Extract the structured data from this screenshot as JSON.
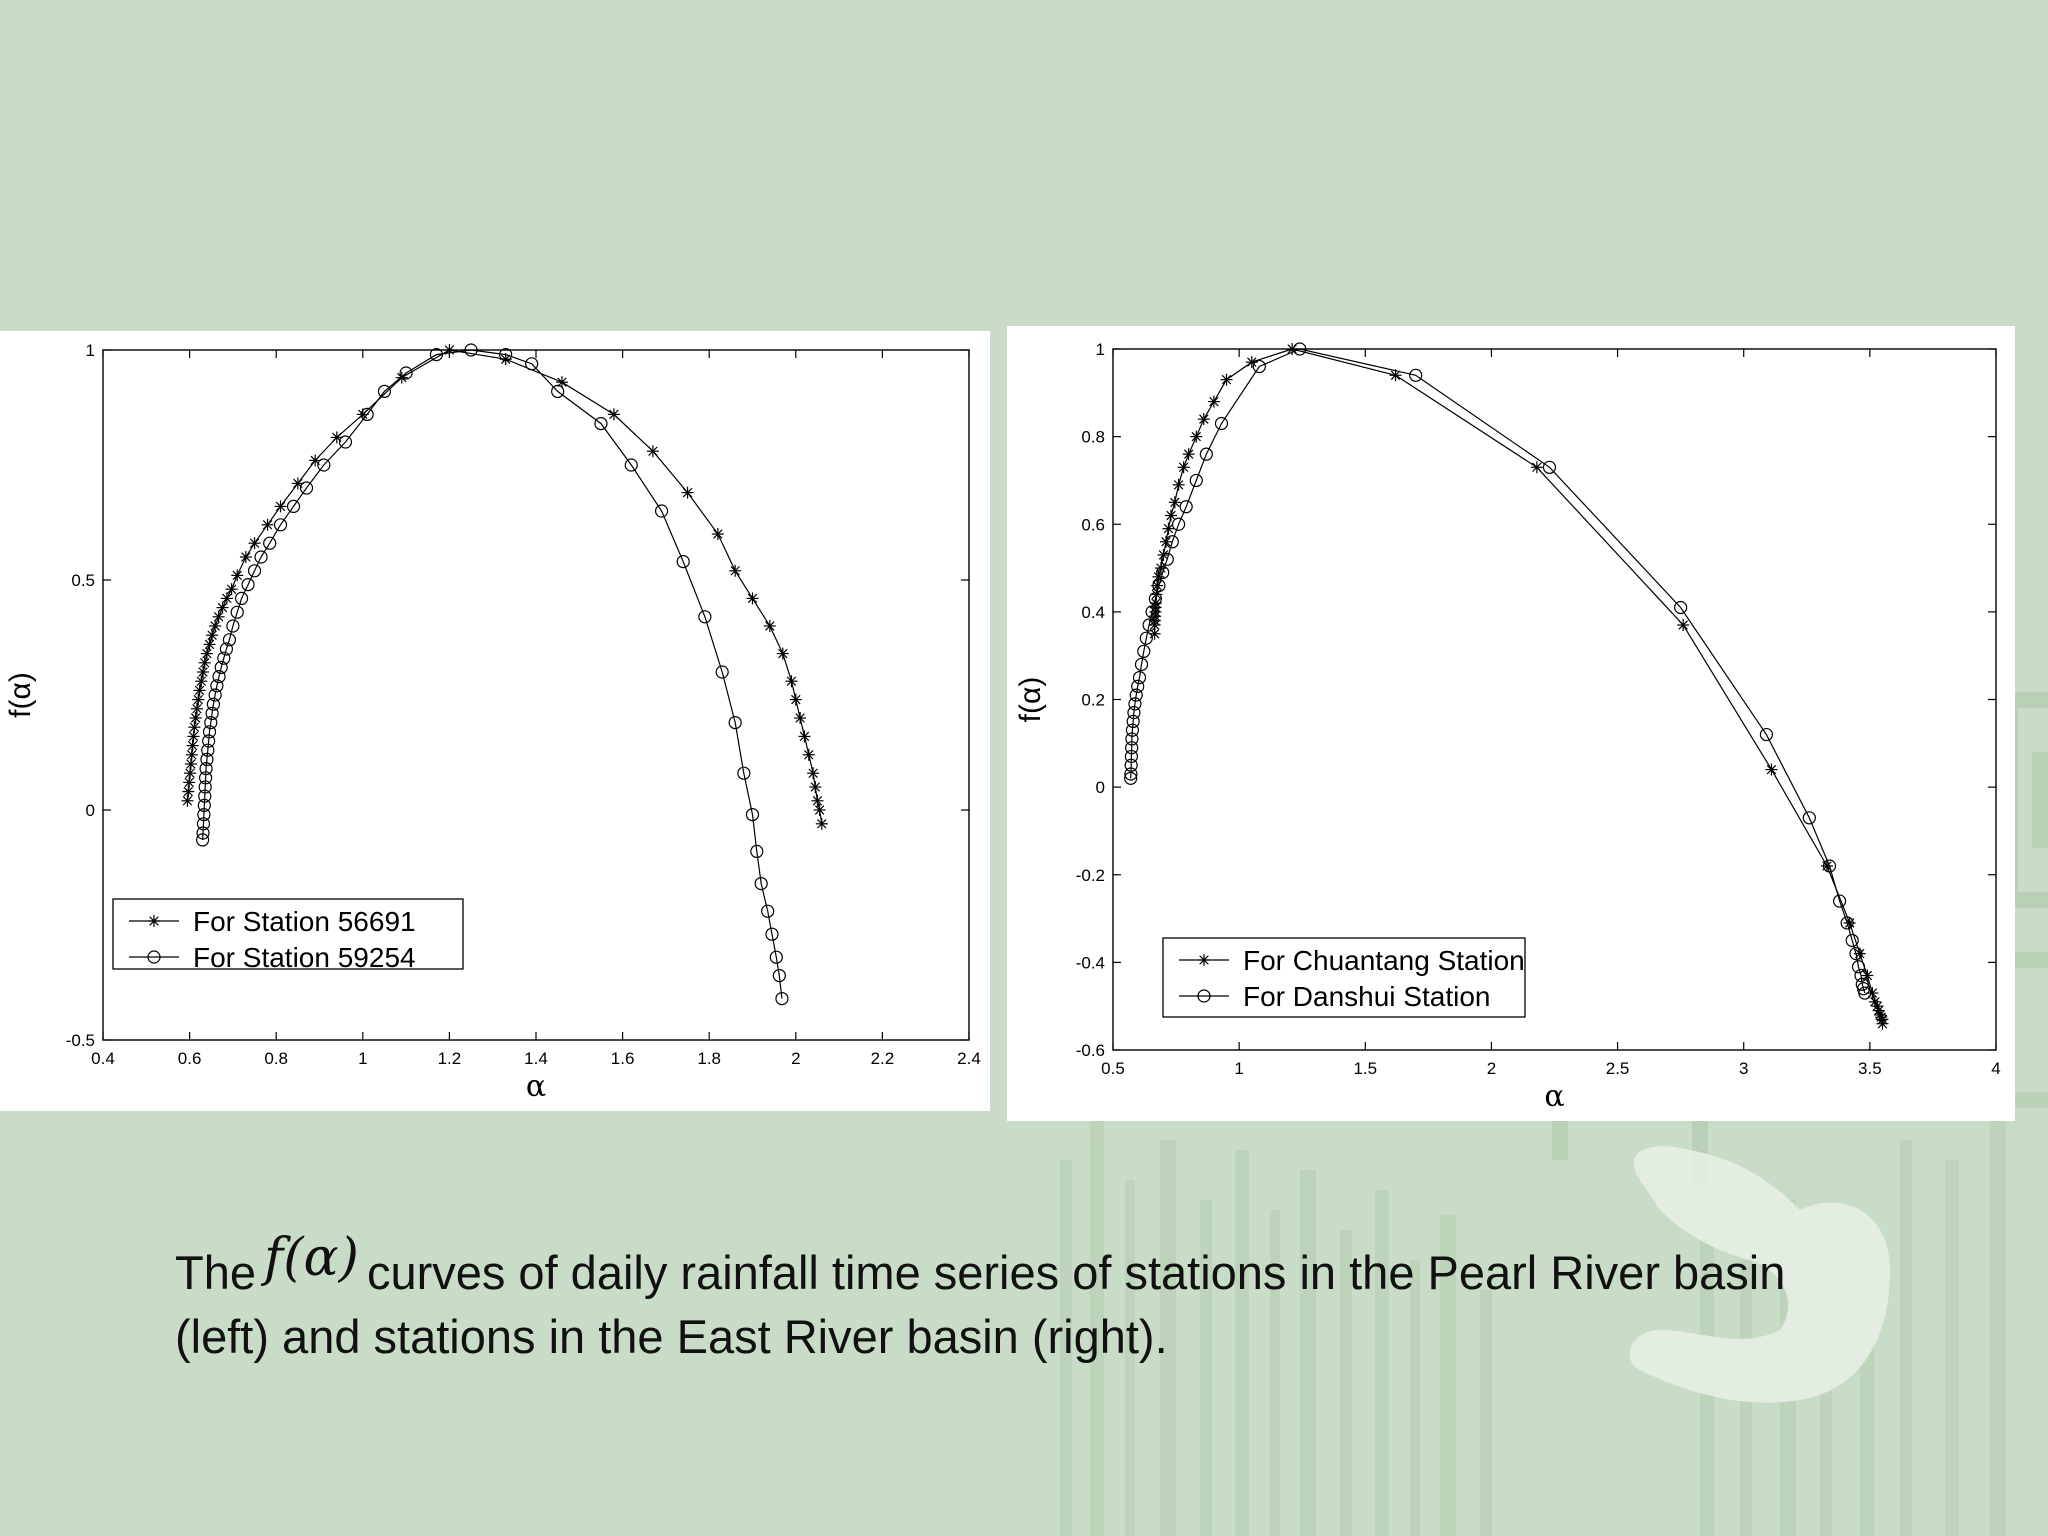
{
  "caption": {
    "prefix": "The",
    "math": "f(α)",
    "text": "curves of daily rainfall time series of stations in the Pearl River basin (left) and stations in the East River basin (right)."
  },
  "colors": {
    "background": "#c9dcc7",
    "panel": "#ffffff",
    "ink": "#000000"
  },
  "chart_data": [
    {
      "type": "line",
      "xlabel": "α",
      "ylabel": "f(α)",
      "xlim": [
        0.4,
        2.4
      ],
      "ylim": [
        -0.5,
        1
      ],
      "xticks": [
        "0.4",
        "0.6",
        "0.8",
        "1",
        "1.2",
        "1.4",
        "1.6",
        "1.8",
        "2",
        "2.2",
        "2.4"
      ],
      "yticks": [
        "-0.5",
        "0",
        "0.5",
        "1"
      ],
      "legend_position": "bottom-left",
      "series": [
        {
          "name": "For Station 56691",
          "marker": "asterisk",
          "x": [
            0.595,
            0.597,
            0.599,
            0.601,
            0.603,
            0.605,
            0.607,
            0.609,
            0.611,
            0.614,
            0.617,
            0.62,
            0.623,
            0.627,
            0.631,
            0.635,
            0.64,
            0.646,
            0.652,
            0.659,
            0.667,
            0.676,
            0.686,
            0.697,
            0.71,
            0.73,
            0.75,
            0.78,
            0.81,
            0.85,
            0.89,
            0.94,
            1.0,
            1.09,
            1.2,
            1.33,
            1.46,
            1.58,
            1.67,
            1.75,
            1.82,
            1.86,
            1.9,
            1.94,
            1.97,
            1.99,
            2.0,
            2.01,
            2.02,
            2.03,
            2.04,
            2.045,
            2.05,
            2.055,
            2.06
          ],
          "y": [
            0.02,
            0.04,
            0.06,
            0.08,
            0.1,
            0.12,
            0.14,
            0.16,
            0.18,
            0.2,
            0.22,
            0.24,
            0.26,
            0.28,
            0.3,
            0.32,
            0.34,
            0.36,
            0.38,
            0.4,
            0.42,
            0.44,
            0.46,
            0.48,
            0.51,
            0.55,
            0.58,
            0.62,
            0.66,
            0.71,
            0.76,
            0.81,
            0.86,
            0.94,
            1.0,
            0.98,
            0.93,
            0.86,
            0.78,
            0.69,
            0.6,
            0.52,
            0.46,
            0.4,
            0.34,
            0.28,
            0.24,
            0.2,
            0.16,
            0.12,
            0.08,
            0.05,
            0.02,
            0.0,
            -0.03
          ]
        },
        {
          "name": "For Station 59254",
          "marker": "circle",
          "x": [
            0.63,
            0.631,
            0.632,
            0.633,
            0.634,
            0.635,
            0.636,
            0.637,
            0.638,
            0.64,
            0.642,
            0.644,
            0.646,
            0.649,
            0.652,
            0.655,
            0.659,
            0.663,
            0.668,
            0.673,
            0.679,
            0.685,
            0.692,
            0.7,
            0.71,
            0.72,
            0.735,
            0.75,
            0.765,
            0.785,
            0.81,
            0.84,
            0.87,
            0.91,
            0.96,
            1.01,
            1.05,
            1.1,
            1.17,
            1.25,
            1.33,
            1.39,
            1.45,
            1.55,
            1.62,
            1.69,
            1.74,
            1.79,
            1.83,
            1.86,
            1.88,
            1.9,
            1.91,
            1.92,
            1.935,
            1.945,
            1.955,
            1.962,
            1.968
          ],
          "y": [
            -0.065,
            -0.05,
            -0.03,
            -0.01,
            0.01,
            0.03,
            0.05,
            0.07,
            0.09,
            0.11,
            0.13,
            0.15,
            0.17,
            0.19,
            0.21,
            0.23,
            0.25,
            0.27,
            0.29,
            0.31,
            0.33,
            0.35,
            0.37,
            0.4,
            0.43,
            0.46,
            0.49,
            0.52,
            0.55,
            0.58,
            0.62,
            0.66,
            0.7,
            0.75,
            0.8,
            0.86,
            0.91,
            0.95,
            0.99,
            1.0,
            0.99,
            0.97,
            0.91,
            0.84,
            0.75,
            0.65,
            0.54,
            0.42,
            0.3,
            0.19,
            0.08,
            -0.01,
            -0.09,
            -0.16,
            -0.22,
            -0.27,
            -0.32,
            -0.36,
            -0.41
          ]
        }
      ]
    },
    {
      "type": "line",
      "xlabel": "α",
      "ylabel": "f(α)",
      "xlim": [
        0.5,
        4
      ],
      "ylim": [
        -0.6,
        1
      ],
      "xticks": [
        "0.5",
        "1",
        "1.5",
        "2",
        "2.5",
        "3",
        "3.5",
        "4"
      ],
      "yticks": [
        "-0.6",
        "-0.4",
        "-0.2",
        "0",
        "0.2",
        "0.4",
        "0.6",
        "0.8",
        "1"
      ],
      "legend_position": "bottom-left",
      "series": [
        {
          "name": "For Chuantang Station",
          "marker": "asterisk",
          "x": [
            0.665,
            0.665,
            0.666,
            0.667,
            0.668,
            0.669,
            0.67,
            0.672,
            0.675,
            0.68,
            0.69,
            0.7,
            0.71,
            0.72,
            0.73,
            0.745,
            0.76,
            0.78,
            0.8,
            0.83,
            0.86,
            0.9,
            0.95,
            1.05,
            1.21,
            1.62,
            2.18,
            2.76,
            3.11,
            3.33,
            3.42,
            3.46,
            3.49,
            3.51,
            3.52,
            3.53,
            3.535,
            3.54,
            3.545,
            3.55,
            3.55
          ],
          "y": [
            0.35,
            0.37,
            0.38,
            0.39,
            0.4,
            0.41,
            0.42,
            0.44,
            0.46,
            0.48,
            0.5,
            0.53,
            0.56,
            0.59,
            0.62,
            0.65,
            0.69,
            0.73,
            0.76,
            0.8,
            0.84,
            0.88,
            0.93,
            0.97,
            1.0,
            0.94,
            0.73,
            0.37,
            0.04,
            -0.18,
            -0.31,
            -0.38,
            -0.43,
            -0.47,
            -0.49,
            -0.5,
            -0.51,
            -0.52,
            -0.525,
            -0.53,
            -0.54
          ]
        },
        {
          "name": "For Danshui Station",
          "marker": "circle",
          "x": [
            0.57,
            0.571,
            0.572,
            0.573,
            0.574,
            0.575,
            0.577,
            0.58,
            0.583,
            0.587,
            0.592,
            0.598,
            0.605,
            0.613,
            0.622,
            0.632,
            0.643,
            0.655,
            0.668,
            0.682,
            0.697,
            0.715,
            0.735,
            0.76,
            0.79,
            0.83,
            0.87,
            0.93,
            1.08,
            1.24,
            1.7,
            2.23,
            2.75,
            3.09,
            3.26,
            3.34,
            3.38,
            3.41,
            3.43,
            3.445,
            3.455,
            3.465,
            3.47,
            3.475,
            3.48
          ],
          "y": [
            0.02,
            0.03,
            0.05,
            0.07,
            0.09,
            0.11,
            0.13,
            0.15,
            0.17,
            0.19,
            0.21,
            0.23,
            0.25,
            0.28,
            0.31,
            0.34,
            0.37,
            0.4,
            0.43,
            0.46,
            0.49,
            0.52,
            0.56,
            0.6,
            0.64,
            0.7,
            0.76,
            0.83,
            0.96,
            1.0,
            0.94,
            0.73,
            0.41,
            0.12,
            -0.07,
            -0.18,
            -0.26,
            -0.31,
            -0.35,
            -0.38,
            -0.41,
            -0.43,
            -0.45,
            -0.46,
            -0.47
          ]
        }
      ]
    }
  ]
}
